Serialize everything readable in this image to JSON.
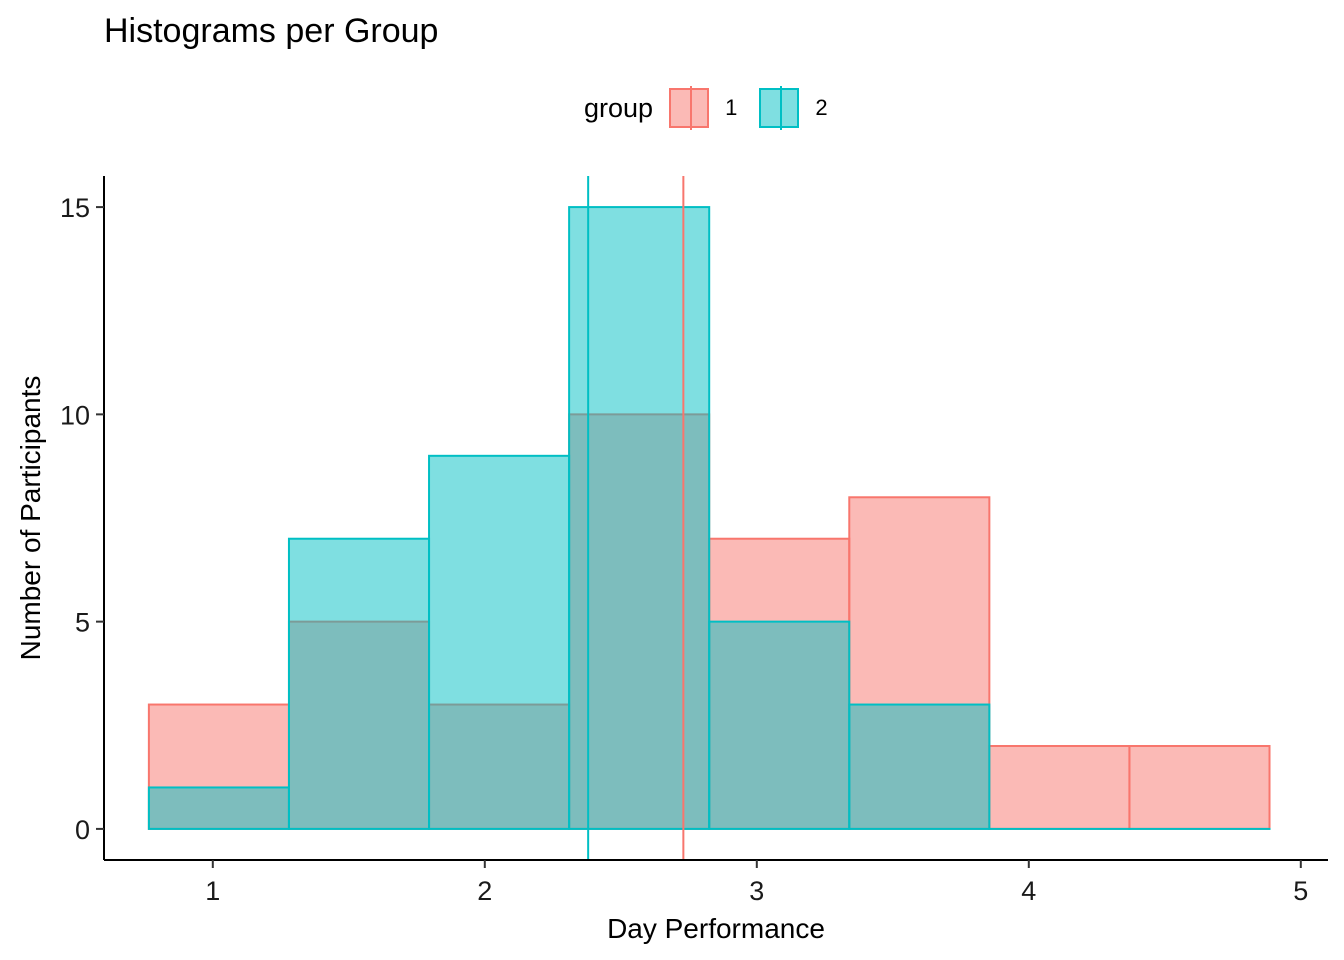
{
  "title": "Histograms per Group",
  "legend": {
    "title": "group",
    "items": [
      {
        "label": "1",
        "fill": "#F8766D",
        "stroke": "#F8766D"
      },
      {
        "label": "2",
        "fill": "#00BFC4",
        "stroke": "#00BFC4"
      }
    ]
  },
  "chart_data": {
    "type": "bar",
    "subtype": "overlapping histogram",
    "title": "Histograms per Group",
    "xlabel": "Day Performance",
    "ylabel": "Number of Participants",
    "xlim": [
      0.6,
      5.1
    ],
    "ylim": [
      -0.75,
      15.75
    ],
    "xticks": [
      1,
      2,
      3,
      4,
      5
    ],
    "yticks": [
      0,
      5,
      10,
      15
    ],
    "grid": false,
    "legend_position": "top",
    "bin_edges": [
      0.765,
      1.28,
      1.795,
      2.31,
      2.825,
      3.34,
      3.855,
      4.37,
      4.885
    ],
    "series": [
      {
        "name": "1",
        "color": "#F8766D",
        "counts": [
          3,
          5,
          3,
          10,
          7,
          8,
          2,
          2
        ],
        "mean": 2.73
      },
      {
        "name": "2",
        "color": "#00BFC4",
        "counts": [
          1,
          7,
          9,
          15,
          5,
          3,
          0,
          0
        ],
        "mean": 2.38
      }
    ]
  }
}
